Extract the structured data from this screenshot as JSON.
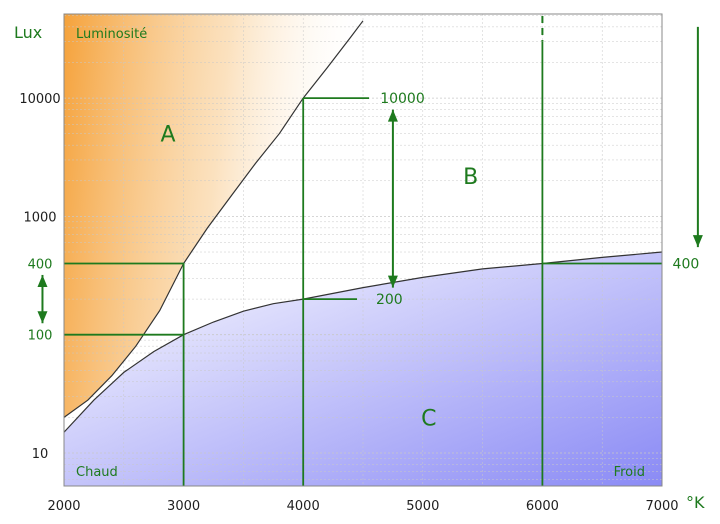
{
  "chart_data": {
    "type": "line",
    "title": "",
    "xlabel": "°K",
    "ylabel": "Lux",
    "xlim": [
      2000,
      7000
    ],
    "ylim": [
      5,
      50000
    ],
    "yscale": "log",
    "grid": true,
    "x_ticks": [
      "2000",
      "3000",
      "4000",
      "5000",
      "6000",
      "7000"
    ],
    "y_ticks": [
      "10",
      "100",
      "400",
      "1000",
      "10000"
    ],
    "x_tick_values": [
      2000,
      3000,
      4000,
      5000,
      6000,
      7000
    ],
    "y_tick_values": [
      10,
      100,
      400,
      1000,
      10000
    ],
    "corner_labels": {
      "top_left": "Luminosité",
      "bottom_left": "Chaud",
      "bottom_right": "Froid"
    },
    "regions": [
      {
        "label": "A",
        "x": 2870,
        "y": 5000
      },
      {
        "label": "B",
        "x": 5400,
        "y": 2200
      },
      {
        "label": "C",
        "x": 5050,
        "y": 20
      }
    ],
    "series": [
      {
        "x": [
          2000,
          2200,
          2400,
          2600,
          2800,
          3000,
          3200,
          3400,
          3600,
          3800,
          4000,
          4200,
          4400,
          4500
        ],
        "values": [
          20,
          28,
          45,
          80,
          160,
          400,
          800,
          1500,
          2800,
          5000,
          10000,
          18000,
          33000,
          45000
        ]
      },
      {
        "x": [
          2000,
          2250,
          2500,
          2750,
          3000,
          3250,
          3500,
          3750,
          4000,
          4500,
          5000,
          5500,
          6000,
          6500,
          7000
        ],
        "values": [
          15,
          28,
          48,
          72,
          100,
          128,
          158,
          183,
          200,
          250,
          305,
          360,
          400,
          450,
          500
        ]
      }
    ],
    "guide_lines": [
      {
        "points": [
          [
            2000,
            400
          ],
          [
            3000,
            400
          ],
          [
            3000,
            5
          ]
        ]
      },
      {
        "points": [
          [
            2000,
            100
          ],
          [
            3000,
            100
          ]
        ]
      },
      {
        "points": [
          [
            4000,
            10000
          ],
          [
            4000,
            5
          ]
        ]
      },
      {
        "points": [
          [
            4000,
            10000
          ],
          [
            4550,
            10000
          ]
        ]
      },
      {
        "points": [
          [
            4000,
            200
          ],
          [
            4450,
            200
          ]
        ]
      },
      {
        "points": [
          [
            6000,
            30000
          ],
          [
            6000,
            5
          ]
        ]
      },
      {
        "points": [
          [
            6000,
            400
          ],
          [
            7000,
            400
          ]
        ]
      }
    ],
    "annotations": [
      {
        "text": "10000",
        "x": 4830,
        "y": 10000
      },
      {
        "text": "200",
        "x": 4720,
        "y": 200
      },
      {
        "text": "400",
        "x": 7200,
        "y": 400
      }
    ],
    "arrows": [
      {
        "kind": "double",
        "from": [
          4750,
          8000
        ],
        "to": [
          4750,
          250
        ]
      },
      {
        "kind": "double",
        "from": [
          1820,
          320
        ],
        "to": [
          1820,
          125
        ]
      },
      {
        "kind": "single",
        "from": [
          7300,
          40000
        ],
        "to": [
          7300,
          550
        ]
      }
    ],
    "colors": {
      "annotation": "#1e7a1e",
      "curve": "#333333",
      "warm_region": "#f5a23b",
      "cool_region": "#8a8af5",
      "grid": "#c8c8c8"
    }
  }
}
